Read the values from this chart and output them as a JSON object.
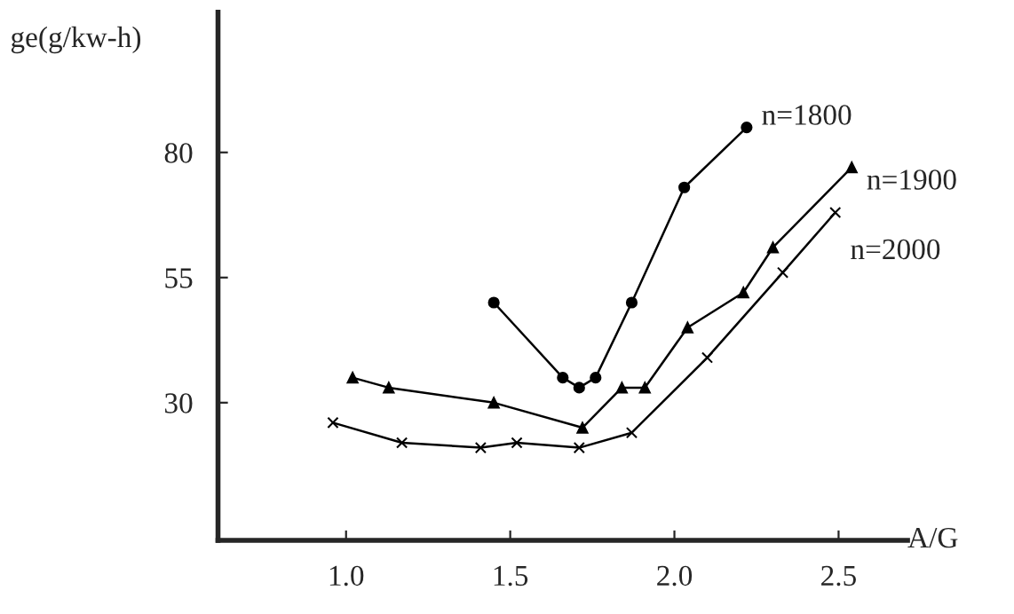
{
  "chart_data": {
    "type": "line",
    "xlabel": "A/G",
    "ylabel": "ge(g/kw-h)",
    "xlim": [
      0.61,
      2.71
    ],
    "ylim": [
      2.5,
      108
    ],
    "xticks": [
      {
        "value": 1.0,
        "label": "1.0"
      },
      1.5,
      {
        "value": 2.0,
        "label": "2.0"
      },
      2.5
    ],
    "yticks": [
      30,
      55,
      80
    ],
    "grid": false,
    "legend": false,
    "line_style": "solid",
    "series": [
      {
        "name": "n=1800",
        "color": "#000000",
        "marker": "circle",
        "x": [
          1.45,
          1.66,
          1.71,
          1.76,
          1.87,
          2.03,
          2.22
        ],
        "values": [
          50,
          35,
          33,
          35,
          50,
          73,
          85
        ]
      },
      {
        "name": "n=1900",
        "color": "#000000",
        "marker": "triangle",
        "x": [
          1.02,
          1.13,
          1.45,
          1.72,
          1.84,
          1.91,
          2.04,
          2.21,
          2.3,
          2.54
        ],
        "values": [
          35,
          33,
          30,
          25,
          33,
          33,
          45,
          52,
          61,
          77
        ]
      },
      {
        "name": "n=2000",
        "color": "#000000",
        "marker": "cross",
        "x": [
          0.96,
          1.17,
          1.41,
          1.52,
          1.71,
          1.87,
          2.1,
          2.33,
          2.49
        ],
        "values": [
          26,
          22,
          21,
          22,
          21,
          24,
          39,
          56,
          68
        ]
      }
    ]
  }
}
